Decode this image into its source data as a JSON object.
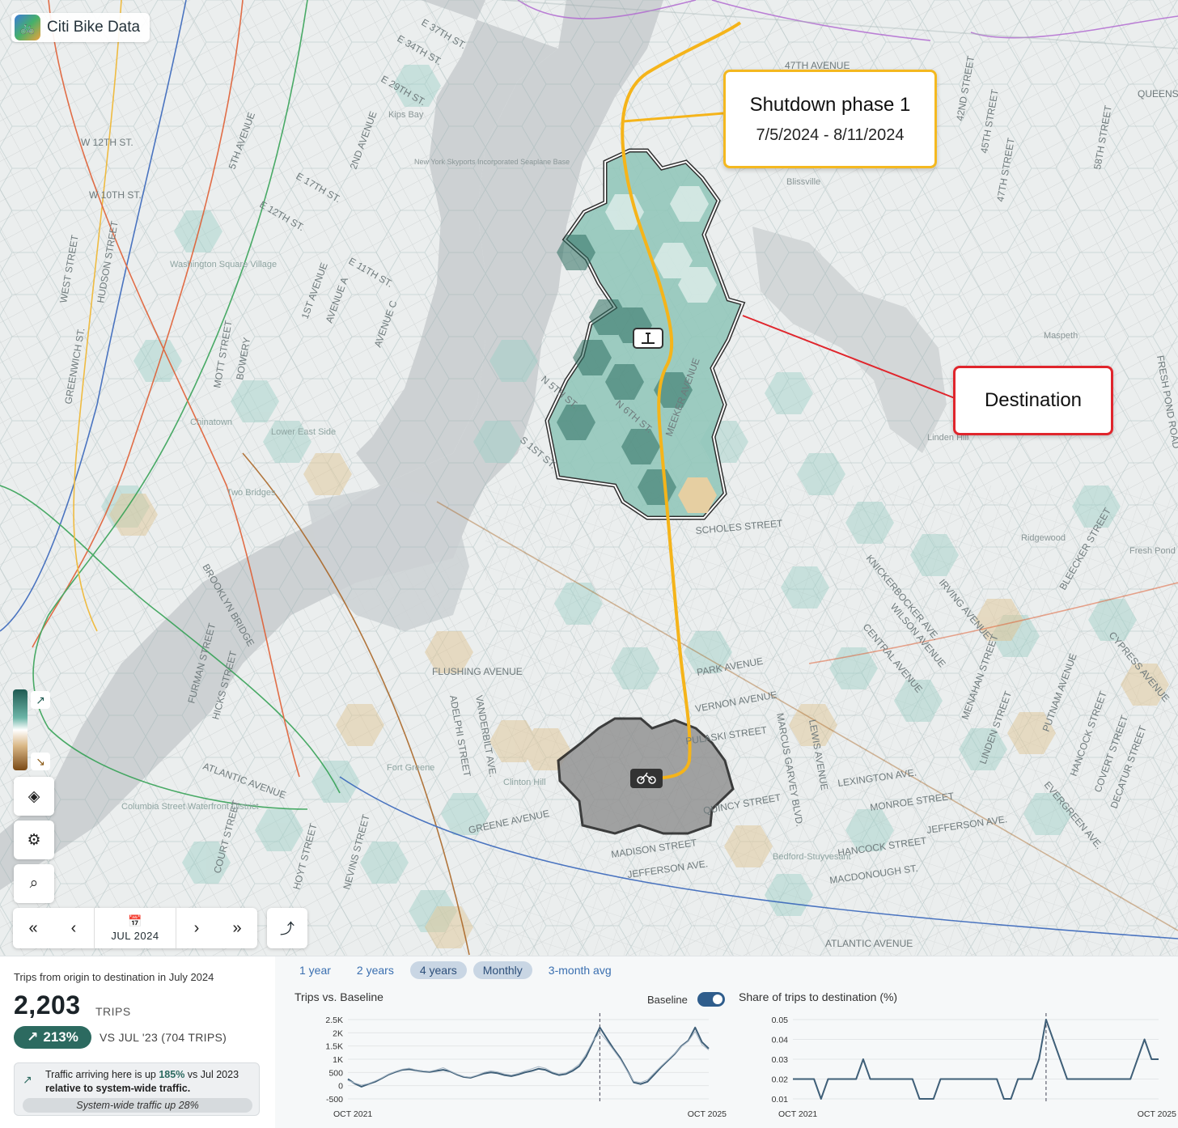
{
  "brand": {
    "name": "Citi Bike Data",
    "logo_icon": "bike-icon"
  },
  "map": {
    "streets": [
      {
        "label": "E 37TH ST."
      },
      {
        "label": "E 34TH ST."
      },
      {
        "label": "E 29TH ST."
      },
      {
        "label": "47TH AVENUE"
      },
      {
        "label": "Kips Bay"
      },
      {
        "label": "W 12TH ST."
      },
      {
        "label": "W 10TH ST."
      },
      {
        "label": "5TH AVENUE"
      },
      {
        "label": "2ND AVENUE"
      },
      {
        "label": "E 17TH ST."
      },
      {
        "label": "E 12TH ST."
      },
      {
        "label": "E 11TH ST."
      },
      {
        "label": "Washington Square Village"
      },
      {
        "label": "1ST AVENUE"
      },
      {
        "label": "AVENUE A"
      },
      {
        "label": "AVENUE C"
      },
      {
        "label": "WEST STREET"
      },
      {
        "label": "HUDSON STREET"
      },
      {
        "label": "GREENWICH ST."
      },
      {
        "label": "MOTT STREET"
      },
      {
        "label": "BOWERY"
      },
      {
        "label": "Chinatown"
      },
      {
        "label": "Lower East Side"
      },
      {
        "label": "Two Bridges"
      },
      {
        "label": "BROOKLYN BRIDGE"
      },
      {
        "label": "FURMAN STREET"
      },
      {
        "label": "HICKS STREET"
      },
      {
        "label": "ATLANTIC AVENUE"
      },
      {
        "label": "Columbia Street Waterfront District"
      },
      {
        "label": "COURT STREET"
      },
      {
        "label": "HOYT STREET"
      },
      {
        "label": "NEVINS STREET"
      },
      {
        "label": "FLUSHING AVENUE"
      },
      {
        "label": "ADELPHI STREET"
      },
      {
        "label": "VANDERBILT AVE."
      },
      {
        "label": "Fort Greene"
      },
      {
        "label": "Clinton Hill"
      },
      {
        "label": "GREENE AVENUE"
      },
      {
        "label": "MADISON STREET"
      },
      {
        "label": "JEFFERSON AVE."
      },
      {
        "label": "QUINCY STREET"
      },
      {
        "label": "PULASKI STREET"
      },
      {
        "label": "VERNON AVENUE"
      },
      {
        "label": "PARK AVENUE"
      },
      {
        "label": "MARCUS GARVEY BLVD."
      },
      {
        "label": "LEWIS AVENUE"
      },
      {
        "label": "LEXINGTON AVE."
      },
      {
        "label": "MONROE STREET"
      },
      {
        "label": "JEFFERSON AVE."
      },
      {
        "label": "HANCOCK STREET"
      },
      {
        "label": "MACDONOUGH ST."
      },
      {
        "label": "Bedford-Stuyvesant"
      },
      {
        "label": "ATLANTIC AVENUE"
      },
      {
        "label": "SCHOLES STREET"
      },
      {
        "label": "MEEKER AVENUE"
      },
      {
        "label": "N 5TH ST."
      },
      {
        "label": "S 1ST ST."
      },
      {
        "label": "N 6TH ST."
      },
      {
        "label": "Blissville"
      },
      {
        "label": "Maspeth"
      },
      {
        "label": "Ridgewood"
      },
      {
        "label": "Fresh Pond"
      },
      {
        "label": "KNICKERBOCKER AVE."
      },
      {
        "label": "IRVING AVENUE"
      },
      {
        "label": "WILSON AVENUE"
      },
      {
        "label": "CENTRAL AVENUE"
      },
      {
        "label": "MENAHAN STREET"
      },
      {
        "label": "LINDEN STREET"
      },
      {
        "label": "PUTNAM AVENUE"
      },
      {
        "label": "HANCOCK STREET"
      },
      {
        "label": "EVERGREEN AVE."
      },
      {
        "label": "COVERT STREET"
      },
      {
        "label": "DECATUR STREET"
      },
      {
        "label": "CYPRESS AVENUE"
      },
      {
        "label": "BLEECKER STREET"
      },
      {
        "label": "42ND STREET"
      },
      {
        "label": "45TH STREET"
      },
      {
        "label": "47TH STREET"
      },
      {
        "label": "58TH STREET"
      },
      {
        "label": "QUEENS"
      },
      {
        "label": "FRESH POND ROAD"
      },
      {
        "label": "Linden Hill"
      },
      {
        "label": "New York Skyports Incorporated Seaplane Base"
      }
    ],
    "callout_phase": {
      "title": "Shutdown phase 1",
      "dates": "7/5/2024 - 8/11/2024",
      "color": "#f4b81f"
    },
    "callout_destination": {
      "title": "Destination",
      "color": "#e0252c"
    },
    "destination_icon": "station-icon",
    "origin_icon": "bike-icon",
    "legend": {
      "up_icon": "trend-up-icon",
      "down_icon": "trend-down-icon"
    },
    "controls": {
      "layers_icon": "layers-icon",
      "filters_icon": "sliders-icon",
      "search_icon": "search-icon"
    },
    "date_nav": {
      "first": "«",
      "prev": "‹",
      "date_label": "JUL 2024",
      "next": "›",
      "last": "»",
      "calendar_icon": "calendar-icon"
    },
    "share_icon": "share-icon"
  },
  "summary": {
    "caption": "Trips from origin to destination in July 2024",
    "trips": "2,203",
    "trips_unit": "TRIPS",
    "change": "213%",
    "change_icon": "trend-up-icon",
    "vs_text": "VS JUL '23 (704 TRIPS)",
    "note_prefix": "Traffic arriving here is up ",
    "note_pct": "185%",
    "note_mid": " vs Jul 2023 ",
    "note_bold": "relative to system-wide traffic.",
    "system_wide": "System-wide traffic up 28%"
  },
  "range_tabs": [
    {
      "label": "1 year",
      "active": false
    },
    {
      "label": "2 years",
      "active": false
    },
    {
      "label": "4 years",
      "active": true
    },
    {
      "label": "Monthly",
      "active": true
    },
    {
      "label": "3-month avg",
      "active": false
    }
  ],
  "chart_data": [
    {
      "type": "line",
      "title": "Trips vs. Baseline",
      "toggle_label": "Baseline",
      "x_start": "OCT 2021",
      "x_end": "OCT 2025",
      "yticks": [
        "2.5K",
        "2K",
        "1.5K",
        "1K",
        "500",
        "0",
        "-500"
      ],
      "ylim": [
        -500,
        2500
      ],
      "series": [
        {
          "values": [
            250,
            80,
            -40,
            60,
            150,
            280,
            420,
            520,
            600,
            620,
            580,
            540,
            520,
            560,
            600,
            540,
            420,
            330,
            300,
            380,
            460,
            500,
            470,
            400,
            360,
            420,
            500,
            560,
            640,
            600,
            480,
            400,
            440,
            560,
            740,
            1100,
            1650,
            2203,
            1800,
            1400,
            1050,
            600,
            120,
            60,
            150,
            420,
            700,
            950,
            1200,
            1500,
            1700,
            2200,
            1650,
            1400
          ]
        },
        {
          "values": [
            200,
            100,
            20,
            80,
            180,
            300,
            440,
            540,
            620,
            660,
            600,
            560,
            540,
            600,
            680,
            560,
            440,
            350,
            320,
            400,
            500,
            560,
            520,
            440,
            400,
            460,
            560,
            640,
            720,
            660,
            520,
            440,
            480,
            620,
            820,
            1200,
            1700,
            2000,
            1700,
            1350,
            1000,
            560,
            160,
            120,
            220,
            480,
            740,
            980,
            1220,
            1480,
            1680,
            2050,
            1550,
            1350
          ]
        }
      ]
    },
    {
      "type": "line",
      "title": "Share of trips to destination (%)",
      "x_start": "OCT 2021",
      "x_end": "OCT 2025",
      "yticks": [
        "0.05",
        "0.04",
        "0.03",
        "0.02",
        "0.01"
      ],
      "ylim": [
        0.01,
        0.05
      ],
      "series": [
        {
          "values": [
            0.02,
            0.02,
            0.02,
            0.02,
            0.01,
            0.02,
            0.02,
            0.02,
            0.02,
            0.02,
            0.03,
            0.02,
            0.02,
            0.02,
            0.02,
            0.02,
            0.02,
            0.02,
            0.01,
            0.01,
            0.01,
            0.02,
            0.02,
            0.02,
            0.02,
            0.02,
            0.02,
            0.02,
            0.02,
            0.02,
            0.01,
            0.01,
            0.02,
            0.02,
            0.02,
            0.03,
            0.05,
            0.04,
            0.03,
            0.02,
            0.02,
            0.02,
            0.02,
            0.02,
            0.02,
            0.02,
            0.02,
            0.02,
            0.02,
            0.03,
            0.04,
            0.03,
            0.03
          ]
        }
      ]
    }
  ]
}
